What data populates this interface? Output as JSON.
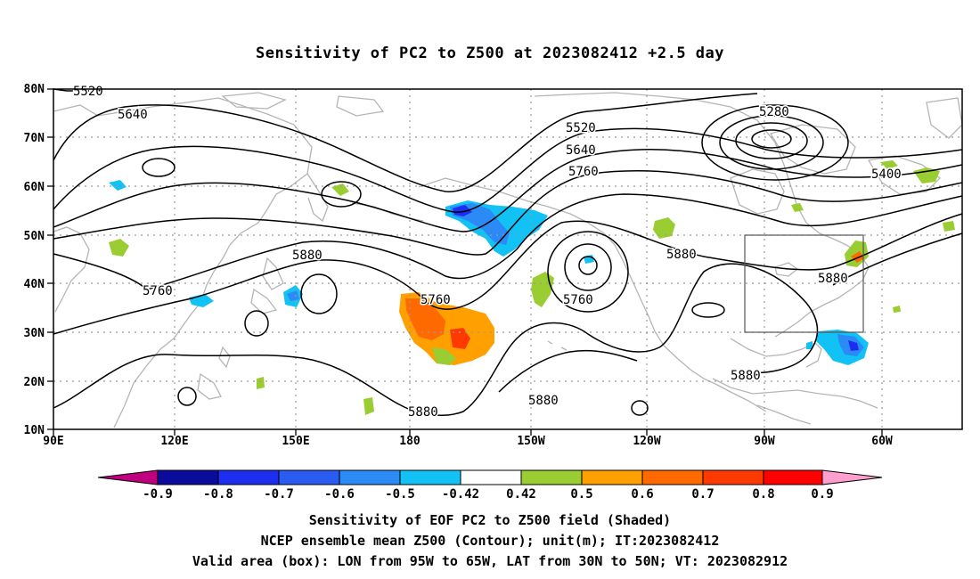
{
  "title": "Sensitivity of PC2 to Z500 at 2023082412 +2.5 day",
  "lat_labels": [
    "80N",
    "70N",
    "60N",
    "50N",
    "40N",
    "30N",
    "20N",
    "10N"
  ],
  "lon_labels": [
    "90E",
    "120E",
    "150E",
    "180",
    "150W",
    "120W",
    "90W",
    "60W"
  ],
  "contour_labels": [
    "5520",
    "5640",
    "5520",
    "5640",
    "5760",
    "5280",
    "5400",
    "5880",
    "5760",
    "5760",
    "5880",
    "5880",
    "5760",
    "5880",
    "5880",
    "5880"
  ],
  "colorbar": {
    "labels": [
      "-0.9",
      "-0.8",
      "-0.7",
      "-0.6",
      "-0.5",
      "-0.42",
      "0.42",
      "0.5",
      "0.6",
      "0.7",
      "0.8",
      "0.9"
    ],
    "colors": [
      "#c0007f",
      "#0b0b9e",
      "#1e2ef0",
      "#2a5cf2",
      "#2b8af5",
      "#12c2f5",
      "#ffffff",
      "#9acd32",
      "#ff9f00",
      "#ff6a00",
      "#ff3a00",
      "#ff0000",
      "#ff9fd0"
    ]
  },
  "footer": {
    "line1": "Sensitivity of EOF PC2 to Z500 field (Shaded)",
    "line2": "NCEP ensemble mean Z500 (Contour); unit(m); IT:2023082412",
    "line3": "Valid area (box): LON from 95W to 65W, LAT from 30N to 50N; VT: 2023082912"
  }
}
